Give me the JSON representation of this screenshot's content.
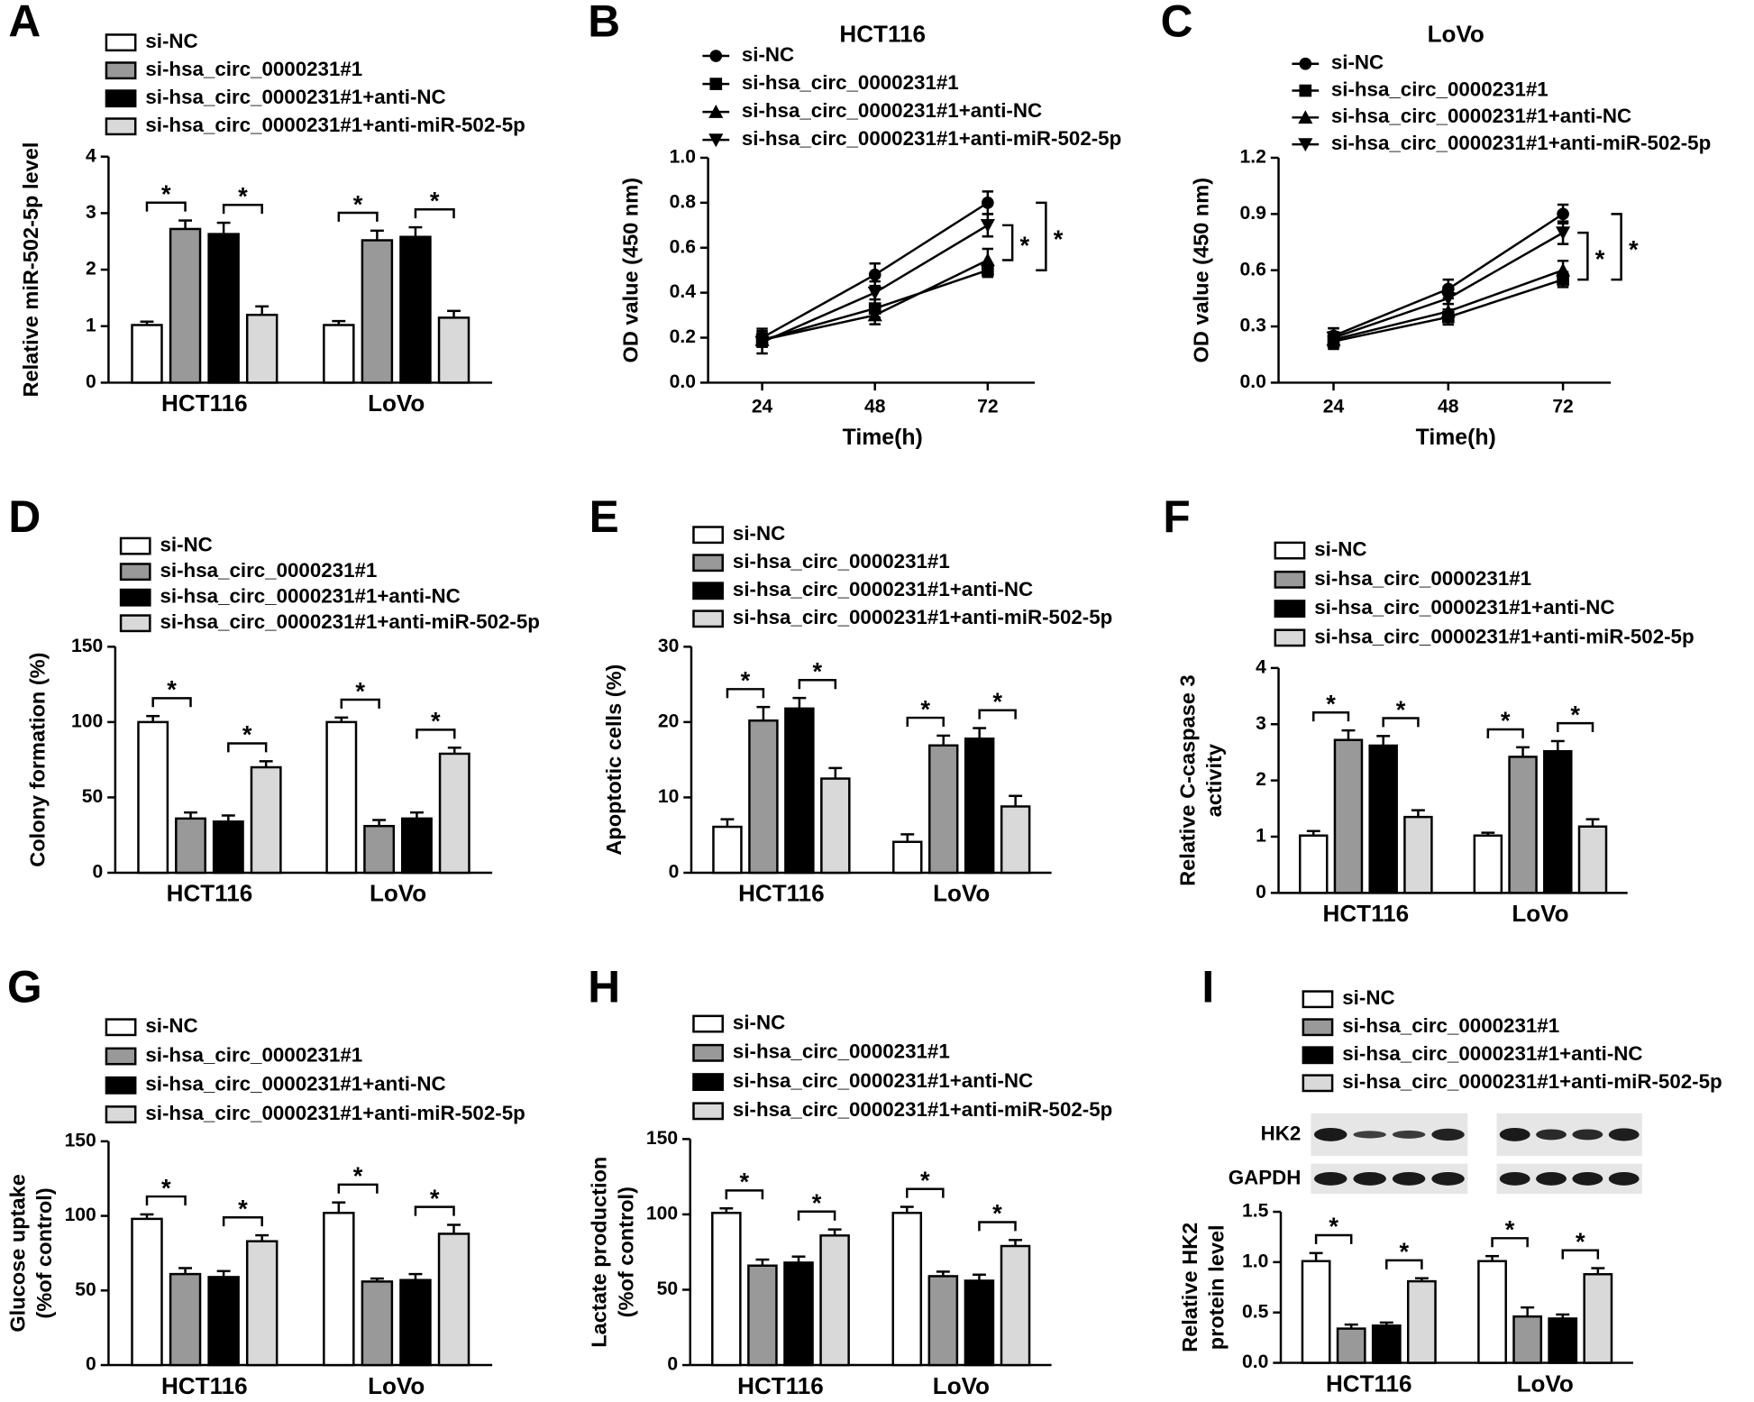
{
  "chart_data": [
    {
      "type": "bar",
      "label": "A",
      "ylabel": "Relative miR-502-5p level",
      "categories": [
        "HCT116",
        "LoVo"
      ],
      "ylim": [
        0,
        4
      ],
      "yticks": [
        0,
        1,
        2,
        3,
        4
      ],
      "series": [
        {
          "name": "si-NC",
          "color": "#ffffff",
          "values": [
            1.02,
            1.02
          ],
          "errors": [
            0.06,
            0.07
          ]
        },
        {
          "name": "si-hsa_circ_0000231#1",
          "color": "#999999",
          "values": [
            2.72,
            2.52
          ],
          "errors": [
            0.15,
            0.17
          ]
        },
        {
          "name": "si-hsa_circ_0000231#1+anti-NC",
          "color": "#000000",
          "values": [
            2.63,
            2.58
          ],
          "errors": [
            0.2,
            0.17
          ]
        },
        {
          "name": "si-hsa_circ_0000231#1+anti-miR-502-5p",
          "color": "#d9d9d9",
          "values": [
            1.2,
            1.15
          ],
          "errors": [
            0.15,
            0.12
          ]
        }
      ],
      "significance": [
        {
          "category": 0,
          "series": [
            0,
            1
          ],
          "label": "*"
        },
        {
          "category": 0,
          "series": [
            2,
            3
          ],
          "label": "*"
        },
        {
          "category": 1,
          "series": [
            0,
            1
          ],
          "label": "*"
        },
        {
          "category": 1,
          "series": [
            2,
            3
          ],
          "label": "*"
        }
      ]
    },
    {
      "type": "line",
      "label": "B",
      "title": "HCT116",
      "xlabel": "Time(h)",
      "ylabel": "OD value (450 nm)",
      "x": [
        24,
        48,
        72
      ],
      "xlim": [
        12.5,
        82
      ],
      "xticks": [
        24,
        48,
        72
      ],
      "ylim": [
        0,
        1
      ],
      "yticks": [
        {
          "value": 0,
          "label": "0.0"
        },
        0.2,
        0.4,
        0.6,
        0.8,
        {
          "value": 1,
          "label": "1.0"
        }
      ],
      "series": [
        {
          "name": "si-NC",
          "color": "#000000",
          "marker": "circle",
          "values": [
            0.2,
            0.48,
            0.8
          ],
          "errors": [
            0.04,
            0.05,
            0.05
          ]
        },
        {
          "name": "si-hsa_circ_0000231#1",
          "color": "#000000",
          "marker": "square",
          "values": [
            0.19,
            0.33,
            0.5
          ],
          "errors": [
            0.03,
            0.04,
            0.03
          ]
        },
        {
          "name": "si-hsa_circ_0000231#1+anti-NC",
          "color": "#000000",
          "marker": "triangle-up",
          "values": [
            0.19,
            0.3,
            0.545
          ],
          "errors": [
            0.03,
            0.04,
            0.05
          ]
        },
        {
          "name": "si-hsa_circ_0000231#1+anti-miR-502-5p",
          "color": "#000000",
          "marker": "triangle-down",
          "values": [
            0.18,
            0.4,
            0.7
          ],
          "errors": [
            0.05,
            0.05,
            0.05
          ]
        }
      ],
      "significance": [
        {
          "x_index": 2,
          "series": [
            3,
            2
          ],
          "label": "*"
        },
        {
          "x_index": 2,
          "series": [
            0,
            1
          ],
          "label": "*"
        }
      ]
    },
    {
      "type": "line",
      "label": "C",
      "title": "LoVo",
      "xlabel": "Time(h)",
      "ylabel": "OD value (450 nm)",
      "x": [
        24,
        48,
        72
      ],
      "xlim": [
        12.5,
        82
      ],
      "xticks": [
        24,
        48,
        72
      ],
      "ylim": [
        0,
        1.2
      ],
      "yticks": [
        {
          "value": 0,
          "label": "0.0"
        },
        0.3,
        0.6,
        0.9,
        1.2
      ],
      "series": [
        {
          "name": "si-NC",
          "color": "#000000",
          "marker": "circle",
          "values": [
            0.25,
            0.5,
            0.9
          ],
          "errors": [
            0.04,
            0.05,
            0.05
          ]
        },
        {
          "name": "si-hsa_circ_0000231#1",
          "color": "#000000",
          "marker": "square",
          "values": [
            0.22,
            0.35,
            0.55
          ],
          "errors": [
            0.04,
            0.04,
            0.04
          ]
        },
        {
          "name": "si-hsa_circ_0000231#1+anti-NC",
          "color": "#000000",
          "marker": "triangle-up",
          "values": [
            0.23,
            0.38,
            0.6
          ],
          "errors": [
            0.04,
            0.04,
            0.05
          ]
        },
        {
          "name": "si-hsa_circ_0000231#1+anti-miR-502-5p",
          "color": "#000000",
          "marker": "triangle-down",
          "values": [
            0.24,
            0.45,
            0.8
          ],
          "errors": [
            0.05,
            0.06,
            0.06
          ]
        }
      ],
      "significance": [
        {
          "x_index": 2,
          "series": [
            3,
            1
          ],
          "label": "*"
        },
        {
          "x_index": 2,
          "series": [
            0,
            1
          ],
          "label": "*"
        }
      ]
    },
    {
      "type": "bar",
      "label": "D",
      "ylabel": "Colony formation (%)",
      "categories": [
        "HCT116",
        "LoVo"
      ],
      "ylim": [
        0,
        150
      ],
      "yticks": [
        0,
        50,
        100,
        150
      ],
      "series": [
        {
          "name": "si-NC",
          "color": "#ffffff",
          "values": [
            100,
            100
          ],
          "errors": [
            4,
            3
          ]
        },
        {
          "name": "si-hsa_circ_0000231#1",
          "color": "#999999",
          "values": [
            36,
            31
          ],
          "errors": [
            4,
            4
          ]
        },
        {
          "name": "si-hsa_circ_0000231#1+anti-NC",
          "color": "#000000",
          "values": [
            34,
            36
          ],
          "errors": [
            4,
            4
          ]
        },
        {
          "name": "si-hsa_circ_0000231#1+anti-miR-502-5p",
          "color": "#d9d9d9",
          "values": [
            70,
            79
          ],
          "errors": [
            4,
            4
          ]
        }
      ],
      "significance": [
        {
          "category": 0,
          "series": [
            0,
            1
          ],
          "label": "*"
        },
        {
          "category": 0,
          "series": [
            2,
            3
          ],
          "label": "*"
        },
        {
          "category": 1,
          "series": [
            0,
            1
          ],
          "label": "*"
        },
        {
          "category": 1,
          "series": [
            2,
            3
          ],
          "label": "*"
        }
      ]
    },
    {
      "type": "bar",
      "label": "E",
      "ylabel": "Apoptotic cells (%)",
      "categories": [
        "HCT116",
        "LoVo"
      ],
      "ylim": [
        0,
        30
      ],
      "yticks": [
        0,
        10,
        20,
        30
      ],
      "series": [
        {
          "name": "si-NC",
          "color": "#ffffff",
          "values": [
            6.1,
            4.1
          ],
          "errors": [
            1,
            1
          ]
        },
        {
          "name": "si-hsa_circ_0000231#1",
          "color": "#999999",
          "values": [
            20.2,
            16.9
          ],
          "errors": [
            1.8,
            1.3
          ]
        },
        {
          "name": "si-hsa_circ_0000231#1+anti-NC",
          "color": "#000000",
          "values": [
            21.8,
            17.8
          ],
          "errors": [
            1.4,
            1.4
          ]
        },
        {
          "name": "si-hsa_circ_0000231#1+anti-miR-502-5p",
          "color": "#d9d9d9",
          "values": [
            12.5,
            8.8
          ],
          "errors": [
            1.4,
            1.4
          ]
        }
      ],
      "significance": [
        {
          "category": 0,
          "series": [
            0,
            1
          ],
          "label": "*"
        },
        {
          "category": 0,
          "series": [
            2,
            3
          ],
          "label": "*"
        },
        {
          "category": 1,
          "series": [
            0,
            1
          ],
          "label": "*"
        },
        {
          "category": 1,
          "series": [
            2,
            3
          ],
          "label": "*"
        }
      ]
    },
    {
      "type": "bar",
      "label": "F",
      "ylabel": [
        "Relative C-caspase 3",
        "activity"
      ],
      "categories": [
        "HCT116",
        "LoVo"
      ],
      "ylim": [
        0,
        4
      ],
      "yticks": [
        0,
        1,
        2,
        3,
        4
      ],
      "series": [
        {
          "name": "si-NC",
          "color": "#ffffff",
          "values": [
            1.02,
            1.02
          ],
          "errors": [
            0.08,
            0.05
          ]
        },
        {
          "name": "si-hsa_circ_0000231#1",
          "color": "#999999",
          "values": [
            2.72,
            2.42
          ],
          "errors": [
            0.17,
            0.17
          ]
        },
        {
          "name": "si-hsa_circ_0000231#1+anti-NC",
          "color": "#000000",
          "values": [
            2.62,
            2.52
          ],
          "errors": [
            0.17,
            0.18
          ]
        },
        {
          "name": "si-hsa_circ_0000231#1+anti-miR-502-5p",
          "color": "#d9d9d9",
          "values": [
            1.35,
            1.18
          ],
          "errors": [
            0.12,
            0.13
          ]
        }
      ],
      "significance": [
        {
          "category": 0,
          "series": [
            0,
            1
          ],
          "label": "*"
        },
        {
          "category": 0,
          "series": [
            2,
            3
          ],
          "label": "*"
        },
        {
          "category": 1,
          "series": [
            0,
            1
          ],
          "label": "*"
        },
        {
          "category": 1,
          "series": [
            2,
            3
          ],
          "label": "*"
        }
      ]
    },
    {
      "type": "bar",
      "label": "G",
      "ylabel": [
        "Glucose uptake",
        "(%of control)"
      ],
      "categories": [
        "HCT116",
        "LoVo"
      ],
      "ylim": [
        0,
        150
      ],
      "yticks": [
        0,
        50,
        100,
        150
      ],
      "series": [
        {
          "name": "si-NC",
          "color": "#ffffff",
          "values": [
            98,
            102
          ],
          "errors": [
            3,
            7
          ]
        },
        {
          "name": "si-hsa_circ_0000231#1",
          "color": "#999999",
          "values": [
            61,
            56
          ],
          "errors": [
            4,
            2
          ]
        },
        {
          "name": "si-hsa_circ_0000231#1+anti-NC",
          "color": "#000000",
          "values": [
            59,
            57
          ],
          "errors": [
            4,
            4
          ]
        },
        {
          "name": "si-hsa_circ_0000231#1+anti-miR-502-5p",
          "color": "#d9d9d9",
          "values": [
            83,
            88
          ],
          "errors": [
            4,
            6
          ]
        }
      ],
      "significance": [
        {
          "category": 0,
          "series": [
            0,
            1
          ],
          "label": "*"
        },
        {
          "category": 0,
          "series": [
            2,
            3
          ],
          "label": "*"
        },
        {
          "category": 1,
          "series": [
            0,
            1
          ],
          "label": "*"
        },
        {
          "category": 1,
          "series": [
            2,
            3
          ],
          "label": "*"
        }
      ]
    },
    {
      "type": "bar",
      "label": "H",
      "ylabel": [
        "Lactate production",
        "(%of control)"
      ],
      "categories": [
        "HCT116",
        "LoVo"
      ],
      "ylim": [
        0,
        150
      ],
      "yticks": [
        0,
        50,
        100,
        150
      ],
      "series": [
        {
          "name": "si-NC",
          "color": "#ffffff",
          "values": [
            101,
            101
          ],
          "errors": [
            3,
            4
          ]
        },
        {
          "name": "si-hsa_circ_0000231#1",
          "color": "#999999",
          "values": [
            66,
            59
          ],
          "errors": [
            4,
            3
          ]
        },
        {
          "name": "si-hsa_circ_0000231#1+anti-NC",
          "color": "#000000",
          "values": [
            68,
            56
          ],
          "errors": [
            4,
            4
          ]
        },
        {
          "name": "si-hsa_circ_0000231#1+anti-miR-502-5p",
          "color": "#d9d9d9",
          "values": [
            86,
            79
          ],
          "errors": [
            4,
            4
          ]
        }
      ],
      "significance": [
        {
          "category": 0,
          "series": [
            0,
            1
          ],
          "label": "*"
        },
        {
          "category": 0,
          "series": [
            2,
            3
          ],
          "label": "*"
        },
        {
          "category": 1,
          "series": [
            0,
            1
          ],
          "label": "*"
        },
        {
          "category": 1,
          "series": [
            2,
            3
          ],
          "label": "*"
        }
      ]
    },
    {
      "type": "bar",
      "label": "I",
      "ylabel": [
        "Relative HK2",
        "protein level"
      ],
      "categories": [
        "HCT116",
        "LoVo"
      ],
      "blot": [
        "HK2",
        "GAPDH"
      ],
      "ylim": [
        0,
        1.5
      ],
      "yticks": [
        {
          "value": 0,
          "label": "0.0"
        },
        0.5,
        {
          "value": 1,
          "label": "1.0"
        },
        1.5
      ],
      "series": [
        {
          "name": "si-NC",
          "color": "#ffffff",
          "values": [
            1.01,
            1.01
          ],
          "errors": [
            0.08,
            0.05
          ]
        },
        {
          "name": "si-hsa_circ_0000231#1",
          "color": "#999999",
          "values": [
            0.34,
            0.46
          ],
          "errors": [
            0.04,
            0.09
          ]
        },
        {
          "name": "si-hsa_circ_0000231#1+anti-NC",
          "color": "#000000",
          "values": [
            0.37,
            0.44
          ],
          "errors": [
            0.03,
            0.04
          ]
        },
        {
          "name": "si-hsa_circ_0000231#1+anti-miR-502-5p",
          "color": "#d9d9d9",
          "values": [
            0.81,
            0.88
          ],
          "errors": [
            0.03,
            0.06
          ]
        }
      ],
      "significance": [
        {
          "category": 0,
          "series": [
            0,
            1
          ],
          "label": "*"
        },
        {
          "category": 0,
          "series": [
            2,
            3
          ],
          "label": "*"
        },
        {
          "category": 1,
          "series": [
            0,
            1
          ],
          "label": "*"
        },
        {
          "category": 1,
          "series": [
            2,
            3
          ],
          "label": "*"
        }
      ]
    }
  ]
}
